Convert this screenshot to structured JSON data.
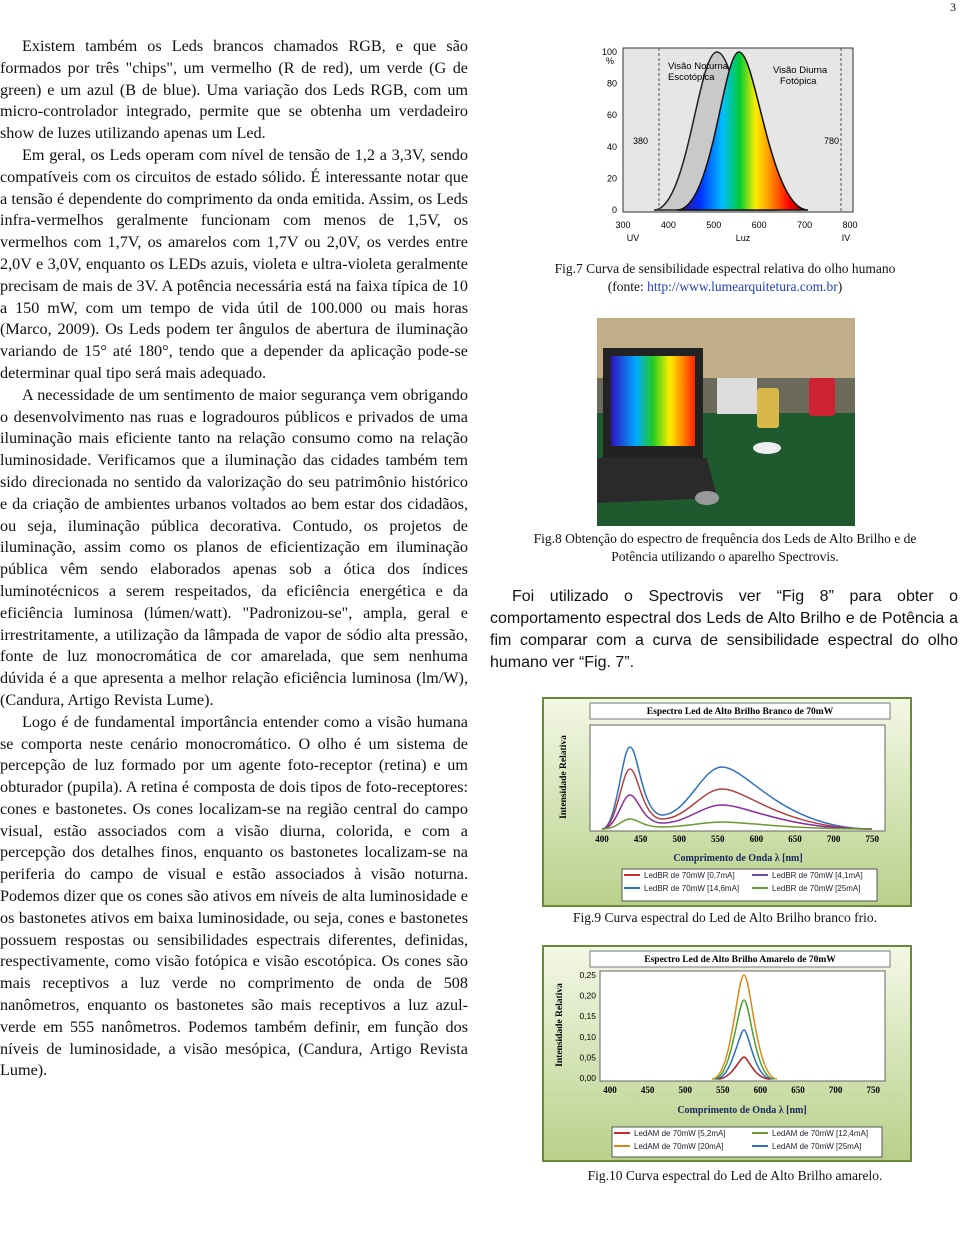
{
  "page_number": "3",
  "left_column": {
    "paragraphs": [
      "Existem também os Leds brancos chamados RGB, e que são formados por três \"chips\", um vermelho (R de red), um verde (G de green) e um azul (B de blue). Uma variação dos Leds RGB, com um micro-controlador integrado, permite que se obtenha um verdadeiro show de luzes utilizando apenas um Led.",
      "Em geral, os Leds operam com nível de tensão de 1,2 a 3,3V, sendo compatíveis com os circuitos de estado sólido. É interessante notar que a tensão é dependente do comprimento da onda emitida. Assim, os Leds infra-vermelhos geralmente funcionam com menos de 1,5V, os vermelhos com 1,7V, os amarelos com 1,7V ou 2,0V, os verdes entre 2,0V e 3,0V, enquanto os LEDs azuis, violeta e ultra-violeta geralmente precisam de mais de 3V. A potência necessária está na faixa típica de 10 a 150 mW, com um tempo de vida útil de 100.000 ou mais horas (Marco, 2009). Os Leds podem ter ângulos de abertura de iluminação variando de 15° até 180°, tendo que a depender da aplicação pode-se determinar qual tipo será mais adequado.",
      "A necessidade de um sentimento de maior segurança vem obrigando o desenvolvimento nas ruas e logradouros públicos e privados de uma iluminação mais eficiente tanto na relação consumo como na relação luminosidade. Verificamos que a iluminação das cidades também tem sido direcionada no sentido da valorização do seu patrimônio histórico e da criação de ambientes urbanos voltados ao bem estar dos cidadãos, ou seja, iluminação pública decorativa. Contudo, os projetos de iluminação, assim como os planos de eficientização em iluminação pública vêm sendo elaborados apenas sob a ótica dos índices luminotécnicos a serem respeitados, da eficiência energética e da eficiência luminosa (lúmen/watt). \"Padronizou-se\", ampla, geral e irrestritamente, a utilização da lâmpada de vapor de sódio alta pressão, fonte de luz monocromática de cor amarelada, que sem nenhuma dúvida é a que apresenta a melhor relação eficiência luminosa (lm/W), (Candura, Artigo Revista Lume).",
      "Logo é de fundamental importância entender como a visão humana se comporta neste cenário monocromático. O olho é um sistema de percepção de luz formado por um agente foto-receptor (retina) e um obturador (pupila). A retina é composta de dois tipos de foto-receptores: cones e bastonetes. Os cones localizam-se na região central do campo visual, estão associados com a visão diurna, colorida, e com a percepção dos detalhes finos, enquanto os bastonetes localizam-se na periferia do campo de visual e estão associados à visão noturna. Podemos dizer que os cones são ativos em níveis de alta luminosidade e os bastonetes ativos em baixa luminosidade, ou seja, cones e bastonetes possuem respostas ou sensibilidades espectrais diferentes, definidas, respectivamente, como visão fotópica e visão escotópica. Os cones são mais receptivos a luz verde no comprimento de onda de 508 nanômetros, enquanto os bastonetes são mais receptivos a luz azul-verde em 555 nanômetros. Podemos também definir, em função dos níveis de luminosidade, a visão mesópica, (Candura, Artigo Revista Lume)."
    ]
  },
  "fig7": {
    "y_ticks": [
      "100",
      "80",
      "60",
      "40",
      "20",
      "0"
    ],
    "y_unit": "%",
    "x_ticks": [
      "300",
      "400",
      "500",
      "600",
      "700",
      "800"
    ],
    "label_night": [
      "Visão Noturna",
      "Escotópica"
    ],
    "label_day": [
      "Visão Diurna",
      "Fotópica"
    ],
    "marker_low": "380",
    "marker_high": "780",
    "band_labels": [
      "UV",
      "Luz",
      "IV"
    ],
    "caption": "Fig.7 Curva de sensibilidade espectral relativa do olho humano",
    "source_open": "(fonte: ",
    "source_url": "http://www.lumearquitetura.com.br",
    "source_close": ")"
  },
  "fig8": {
    "caption": [
      "Fig.8 Obtenção do espectro de frequência dos Leds de Alto Brilho e de",
      "Potência utilizando o aparelho Spectrovis."
    ]
  },
  "right_paragraph": "Foi utilizado o Spectrovis ver “Fig 8” para obter o comportamento espectral dos Leds de Alto Brilho e de Potência a fim comparar com a curva de sensibilidade espectral do olho humano ver “Fig. 7”.",
  "fig9": {
    "title": "Espectro Led de Alto Brilho Branco de 70mW",
    "y_label": "Intensidade Relativa",
    "x_ticks": [
      "400",
      "450",
      "500",
      "550",
      "600",
      "650",
      "700",
      "750"
    ],
    "x_label": "Comprimento de Onda λ [nm]",
    "legend": [
      "LedBR de 70mW [0,7mA]",
      "LedBR de 70mW [4,1mA]",
      "LedBR de 70mW [14,6mA]",
      "LedBR de 70mW [25mA]"
    ],
    "caption": "Fig.9 Curva espectral do Led de Alto Brilho branco frio."
  },
  "fig10": {
    "title": "Espectro Led de Alto Brilho Amarelo de 70mW",
    "y_label": "Intensidade Relativa",
    "y_ticks": [
      "0,25",
      "0,20",
      "0,15",
      "0,10",
      "0,05",
      "0,00"
    ],
    "x_ticks": [
      "400",
      "450",
      "500",
      "550",
      "600",
      "650",
      "700",
      "750"
    ],
    "x_label": "Comprimento de Onda λ [nm]",
    "legend": [
      "LedAM de 70mW [5,2mA]",
      "LedAM de 70mW [12,4mA]",
      "LedAM de 70mW [20mA]",
      "LedAM de 70mW [25mA]"
    ],
    "caption": "Fig.10 Curva espectral do Led de Alto Brilho amarelo."
  }
}
